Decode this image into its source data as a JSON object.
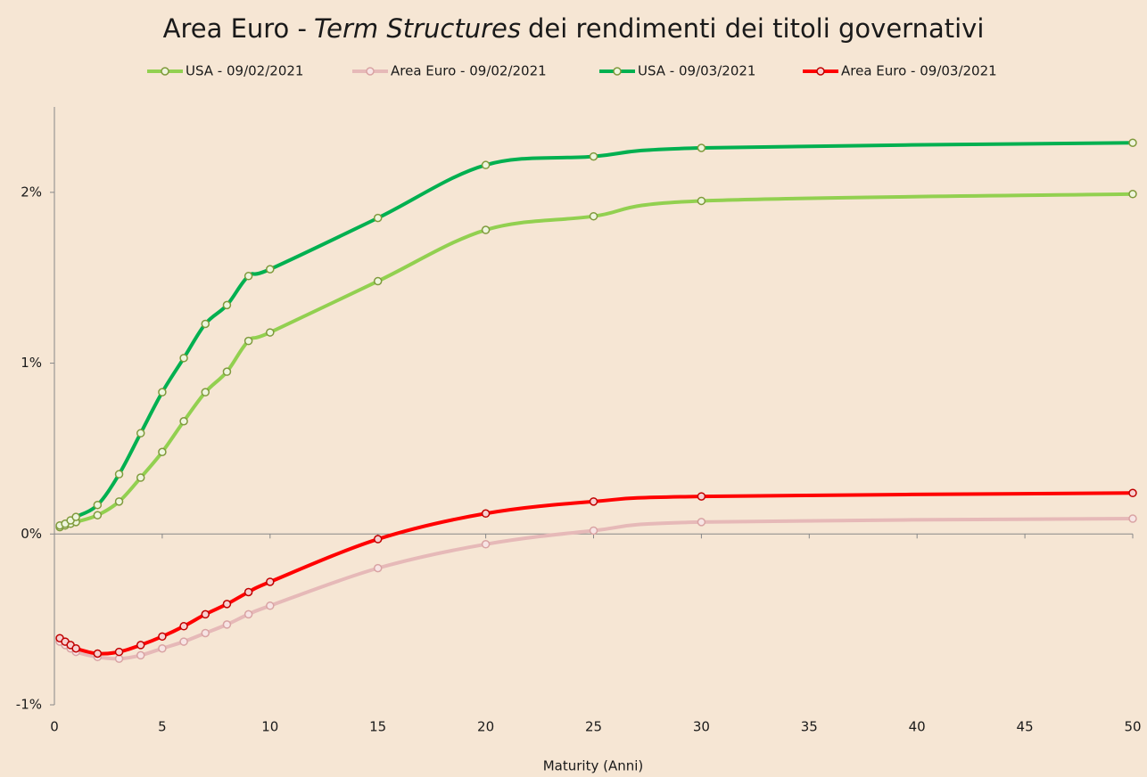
{
  "chart_data": {
    "type": "line",
    "title_parts": [
      "Area Euro -",
      "Term Structures",
      "dei rendimenti dei titoli governativi"
    ],
    "x_label": "Maturity (Anni)",
    "x": [
      0.25,
      0.5,
      0.75,
      1,
      2,
      3,
      4,
      5,
      6,
      7,
      8,
      9,
      10,
      15,
      20,
      25,
      30,
      50
    ],
    "series": [
      {
        "name": "USA - 09/02/2021",
        "color": "#92d050",
        "marker_stroke": "#7f9a3c",
        "marker_fill": "#eef5dd",
        "values": [
          0.04,
          0.05,
          0.06,
          0.07,
          0.11,
          0.19,
          0.33,
          0.48,
          0.66,
          0.83,
          0.95,
          1.13,
          1.18,
          1.48,
          1.78,
          1.86,
          1.95,
          1.99
        ]
      },
      {
        "name": "Area Euro - 09/02/2021",
        "color": "#e6b9b8",
        "marker_stroke": "#d9a3a3",
        "marker_fill": "#f7e4e4",
        "values": [
          -0.63,
          -0.65,
          -0.67,
          -0.69,
          -0.72,
          -0.73,
          -0.71,
          -0.67,
          -0.63,
          -0.58,
          -0.53,
          -0.47,
          -0.42,
          -0.2,
          -0.06,
          0.02,
          0.07,
          0.09
        ]
      },
      {
        "name": "USA - 09/03/2021",
        "color": "#00b050",
        "marker_stroke": "#7f9a3c",
        "marker_fill": "#eef5dd",
        "values": [
          0.05,
          0.06,
          0.08,
          0.1,
          0.17,
          0.35,
          0.59,
          0.83,
          1.03,
          1.23,
          1.34,
          1.51,
          1.55,
          1.85,
          2.16,
          2.21,
          2.26,
          2.29
        ]
      },
      {
        "name": "Area Euro - 09/03/2021",
        "color": "#ff0000",
        "marker_stroke": "#c00000",
        "marker_fill": "#f7d0d0",
        "values": [
          -0.61,
          -0.63,
          -0.65,
          -0.67,
          -0.7,
          -0.69,
          -0.65,
          -0.6,
          -0.54,
          -0.47,
          -0.41,
          -0.34,
          -0.28,
          -0.03,
          0.12,
          0.19,
          0.22,
          0.24
        ]
      }
    ],
    "xlim": [
      0,
      50
    ],
    "xticks": [
      0,
      5,
      10,
      15,
      20,
      25,
      30,
      35,
      40,
      45,
      50
    ],
    "ylim": [
      -1,
      2.5
    ],
    "yticks": [
      {
        "value": -1,
        "label": "-1%"
      },
      {
        "value": 0,
        "label": "0%"
      },
      {
        "value": 1,
        "label": "1%"
      },
      {
        "value": 2,
        "label": "2%"
      }
    ],
    "grid": false,
    "legend": "top",
    "smooth": true
  }
}
